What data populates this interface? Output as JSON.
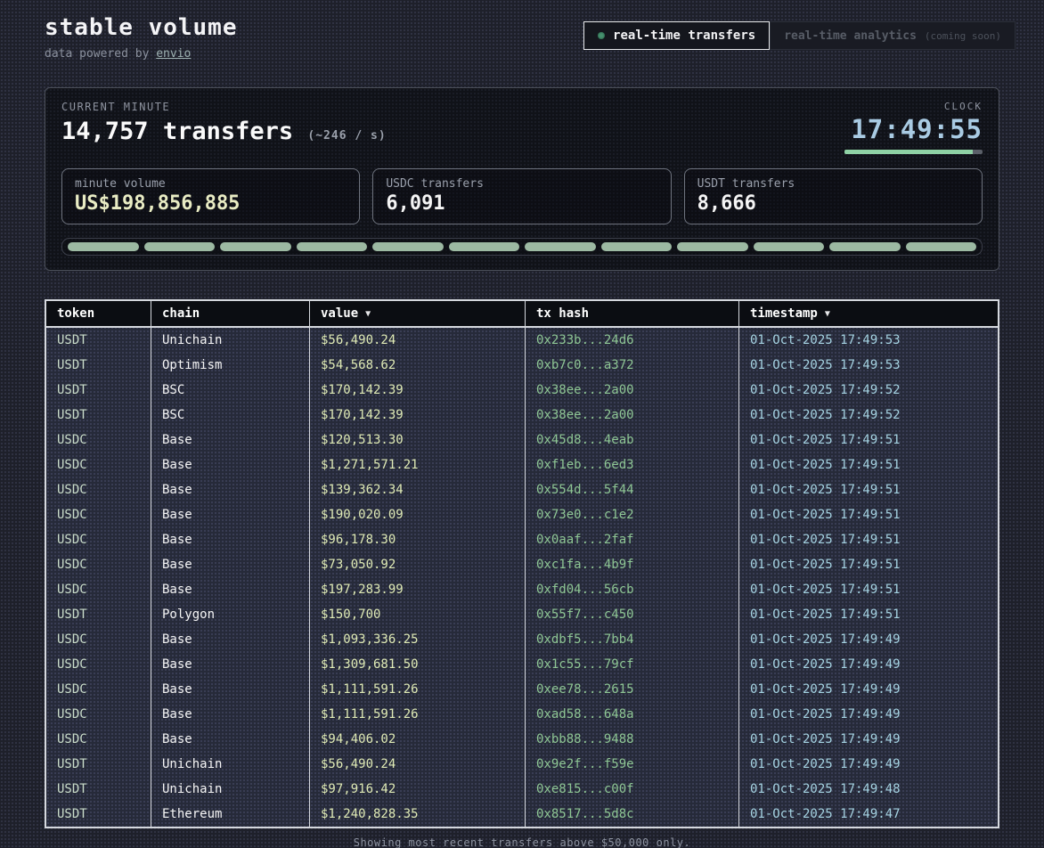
{
  "header": {
    "title": "stable volume",
    "subtitle_prefix": "data powered by ",
    "subtitle_link": "envio",
    "tabs": [
      {
        "label": "real-time transfers",
        "active": true
      },
      {
        "label": "real-time analytics",
        "suffix": "(coming soon)",
        "active": false
      }
    ]
  },
  "stats": {
    "current_minute_label": "CURRENT MINUTE",
    "transfers_count": "14,757",
    "transfers_word": "transfers",
    "rate": "(~246 / s)",
    "clock_label": "CLOCK",
    "clock_time": "17:49:55",
    "clock_progress_pct": 93,
    "boxes": [
      {
        "label": "minute volume",
        "value": "US$198,856,885"
      },
      {
        "label": "USDC transfers",
        "value": "6,091"
      },
      {
        "label": "USDT transfers",
        "value": "8,666"
      }
    ],
    "segment_count": 12
  },
  "table": {
    "columns": [
      {
        "key": "token",
        "label": "token",
        "sort": "",
        "sortable": false
      },
      {
        "key": "chain",
        "label": "chain",
        "sort": "",
        "sortable": false
      },
      {
        "key": "value",
        "label": "value",
        "sort": "▼",
        "sortable": true
      },
      {
        "key": "hash",
        "label": "tx hash",
        "sort": "",
        "sortable": false
      },
      {
        "key": "timestamp",
        "label": "timestamp",
        "sort": "▼",
        "sortable": true
      }
    ],
    "rows": [
      [
        "USDT",
        "Unichain",
        "$56,490.24",
        "0x233b...24d6",
        "01-Oct-2025 17:49:53"
      ],
      [
        "USDT",
        "Optimism",
        "$54,568.62",
        "0xb7c0...a372",
        "01-Oct-2025 17:49:53"
      ],
      [
        "USDT",
        "BSC",
        "$170,142.39",
        "0x38ee...2a00",
        "01-Oct-2025 17:49:52"
      ],
      [
        "USDT",
        "BSC",
        "$170,142.39",
        "0x38ee...2a00",
        "01-Oct-2025 17:49:52"
      ],
      [
        "USDC",
        "Base",
        "$120,513.30",
        "0x45d8...4eab",
        "01-Oct-2025 17:49:51"
      ],
      [
        "USDC",
        "Base",
        "$1,271,571.21",
        "0xf1eb...6ed3",
        "01-Oct-2025 17:49:51"
      ],
      [
        "USDC",
        "Base",
        "$139,362.34",
        "0x554d...5f44",
        "01-Oct-2025 17:49:51"
      ],
      [
        "USDC",
        "Base",
        "$190,020.09",
        "0x73e0...c1e2",
        "01-Oct-2025 17:49:51"
      ],
      [
        "USDC",
        "Base",
        "$96,178.30",
        "0x0aaf...2faf",
        "01-Oct-2025 17:49:51"
      ],
      [
        "USDC",
        "Base",
        "$73,050.92",
        "0xc1fa...4b9f",
        "01-Oct-2025 17:49:51"
      ],
      [
        "USDC",
        "Base",
        "$197,283.99",
        "0xfd04...56cb",
        "01-Oct-2025 17:49:51"
      ],
      [
        "USDT",
        "Polygon",
        "$150,700",
        "0x55f7...c450",
        "01-Oct-2025 17:49:51"
      ],
      [
        "USDC",
        "Base",
        "$1,093,336.25",
        "0xdbf5...7bb4",
        "01-Oct-2025 17:49:49"
      ],
      [
        "USDC",
        "Base",
        "$1,309,681.50",
        "0x1c55...79cf",
        "01-Oct-2025 17:49:49"
      ],
      [
        "USDC",
        "Base",
        "$1,111,591.26",
        "0xee78...2615",
        "01-Oct-2025 17:49:49"
      ],
      [
        "USDC",
        "Base",
        "$1,111,591.26",
        "0xad58...648a",
        "01-Oct-2025 17:49:49"
      ],
      [
        "USDC",
        "Base",
        "$94,406.02",
        "0xbb88...9488",
        "01-Oct-2025 17:49:49"
      ],
      [
        "USDT",
        "Unichain",
        "$56,490.24",
        "0x9e2f...f59e",
        "01-Oct-2025 17:49:49"
      ],
      [
        "USDT",
        "Unichain",
        "$97,916.42",
        "0xe815...c00f",
        "01-Oct-2025 17:49:48"
      ],
      [
        "USDT",
        "Ethereum",
        "$1,240,828.35",
        "0x8517...5d8c",
        "01-Oct-2025 17:49:47"
      ]
    ]
  },
  "footer": {
    "note": "Showing most recent transfers above $50,000 only."
  },
  "colors": {
    "live_dot_green": "#46916f",
    "clock_blue": "#a9cbe3",
    "clock_progress_green": "#8ed1a4",
    "minute_volume_yellow": "#e9ecc4",
    "segment_green": "#9cb9a2",
    "token_green": "#c9dcc9",
    "value_yellow_green": "#dfeab5",
    "hash_green": "#8ec694",
    "timestamp_blue": "#a5d3e2"
  }
}
